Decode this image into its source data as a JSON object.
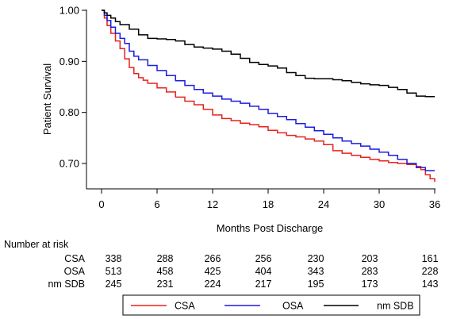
{
  "chart_data": {
    "type": "line",
    "xlabel": "Months Post Discharge",
    "ylabel": "Patient Survival",
    "xlim": [
      0,
      36
    ],
    "ylim": [
      0.67,
      1.0
    ],
    "xticks": [
      "0",
      "6",
      "12",
      "18",
      "24",
      "30",
      "36"
    ],
    "yticks": [
      "1.00",
      "0.90",
      "0.80",
      "0.70"
    ],
    "grid": false,
    "legend_position": "bottom",
    "series": [
      {
        "name": "CSA",
        "color": "#e8221c",
        "x": [
          0,
          0.3,
          0.6,
          1,
          1.5,
          2,
          2.5,
          3,
          3.5,
          4,
          4.5,
          5,
          6,
          7,
          8,
          9,
          10,
          11,
          12,
          13,
          14,
          15,
          16,
          17,
          18,
          19,
          20,
          21,
          22,
          23,
          24,
          25,
          26,
          27,
          28,
          29,
          30,
          31,
          32,
          33,
          34,
          34.5,
          35,
          35.5,
          36
        ],
        "y": [
          1.0,
          0.985,
          0.97,
          0.955,
          0.94,
          0.925,
          0.905,
          0.888,
          0.876,
          0.868,
          0.863,
          0.857,
          0.848,
          0.84,
          0.83,
          0.822,
          0.815,
          0.806,
          0.795,
          0.788,
          0.784,
          0.779,
          0.776,
          0.772,
          0.765,
          0.76,
          0.755,
          0.752,
          0.748,
          0.744,
          0.737,
          0.725,
          0.72,
          0.716,
          0.712,
          0.708,
          0.705,
          0.702,
          0.7,
          0.698,
          0.694,
          0.688,
          0.678,
          0.67,
          0.664
        ]
      },
      {
        "name": "OSA",
        "color": "#1c1ce0",
        "x": [
          0,
          0.3,
          0.6,
          1,
          1.5,
          2,
          2.5,
          3,
          3.5,
          4,
          5,
          6,
          7,
          8,
          9,
          10,
          11,
          12,
          13,
          14,
          15,
          16,
          17,
          18,
          19,
          20,
          21,
          22,
          23,
          24,
          25,
          26,
          27,
          28,
          29,
          30,
          31,
          32,
          33,
          34,
          35,
          36
        ],
        "y": [
          1.0,
          0.99,
          0.98,
          0.967,
          0.955,
          0.945,
          0.935,
          0.92,
          0.91,
          0.903,
          0.892,
          0.882,
          0.872,
          0.862,
          0.853,
          0.845,
          0.838,
          0.832,
          0.826,
          0.822,
          0.818,
          0.812,
          0.806,
          0.798,
          0.792,
          0.786,
          0.778,
          0.771,
          0.764,
          0.757,
          0.75,
          0.744,
          0.739,
          0.734,
          0.728,
          0.722,
          0.716,
          0.708,
          0.7,
          0.692,
          0.686,
          0.686
        ]
      },
      {
        "name": "nm SDB",
        "color": "#000000",
        "x": [
          0,
          0.3,
          0.6,
          1,
          1.5,
          2,
          3,
          4,
          5,
          6,
          7,
          8,
          9,
          10,
          11,
          12,
          13,
          14,
          15,
          16,
          17,
          18,
          19,
          20,
          21,
          22,
          23,
          24,
          25,
          26,
          27,
          28,
          29,
          30,
          31,
          32,
          33,
          34,
          35,
          36
        ],
        "y": [
          1.0,
          0.995,
          0.99,
          0.985,
          0.978,
          0.972,
          0.963,
          0.952,
          0.945,
          0.944,
          0.943,
          0.94,
          0.933,
          0.928,
          0.926,
          0.924,
          0.92,
          0.914,
          0.906,
          0.898,
          0.894,
          0.891,
          0.887,
          0.878,
          0.872,
          0.867,
          0.866,
          0.866,
          0.864,
          0.862,
          0.859,
          0.856,
          0.854,
          0.853,
          0.849,
          0.845,
          0.838,
          0.832,
          0.831,
          0.831
        ]
      }
    ]
  },
  "risk_table": {
    "title": "Number  at risk",
    "rows": [
      {
        "label": "CSA",
        "values": [
          "338",
          "288",
          "266",
          "256",
          "230",
          "203",
          "161"
        ]
      },
      {
        "label": "OSA",
        "values": [
          "513",
          "458",
          "425",
          "404",
          "343",
          "283",
          "228"
        ]
      },
      {
        "label": "nm SDB",
        "values": [
          "245",
          "231",
          "224",
          "217",
          "195",
          "173",
          "143"
        ]
      }
    ]
  },
  "legend": [
    {
      "label": "CSA",
      "color": "#e8221c"
    },
    {
      "label": "OSA",
      "color": "#1c1ce0"
    },
    {
      "label": "nm SDB",
      "color": "#000000"
    }
  ]
}
